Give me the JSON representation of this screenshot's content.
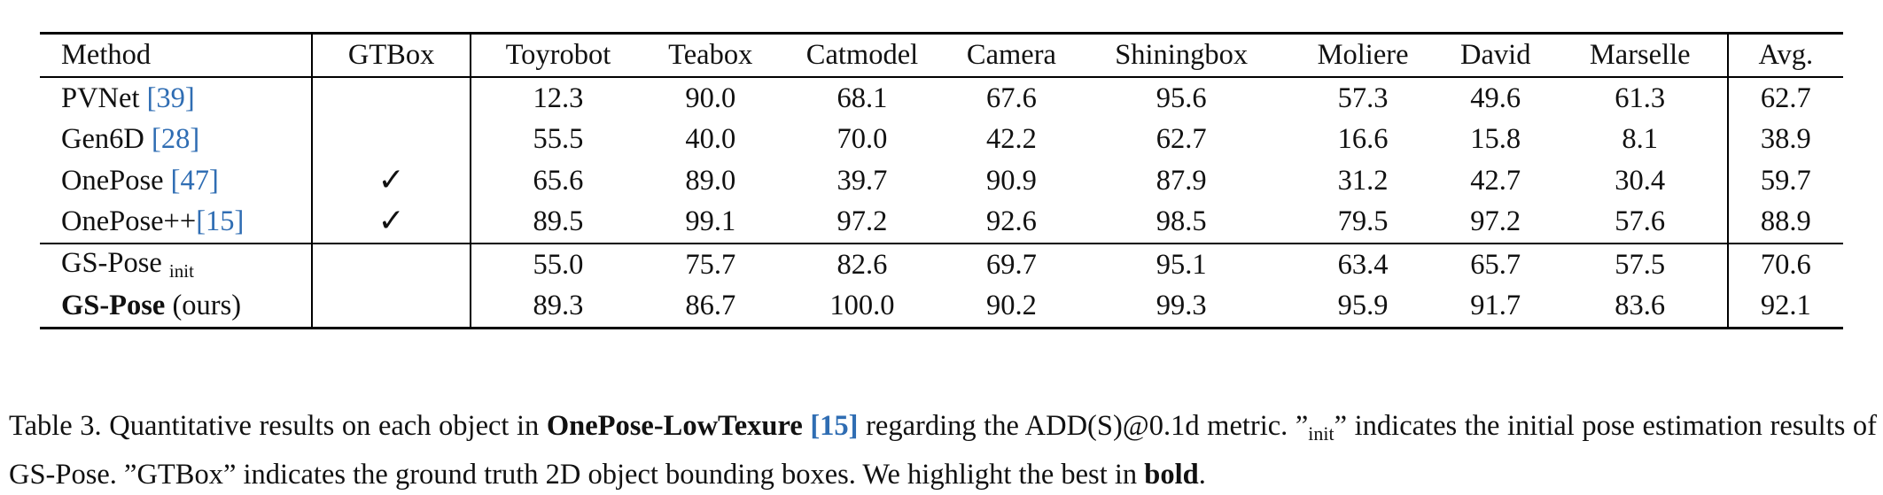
{
  "table": {
    "headers": [
      "Method",
      "GTBox",
      "Toyrobot",
      "Teabox",
      "Catmodel",
      "Camera",
      "Shiningbox",
      "Moliere",
      "David",
      "Marselle",
      "Avg."
    ],
    "rows": [
      {
        "method": {
          "name": "PVNet ",
          "ref": "[39]",
          "after": ""
        },
        "gtbox": "",
        "values": [
          "12.3",
          "90.0",
          "68.1",
          "67.6",
          "95.6",
          "57.3",
          "49.6",
          "61.3",
          "62.7"
        ]
      },
      {
        "method": {
          "name": "Gen6D ",
          "ref": "[28]",
          "after": ""
        },
        "gtbox": "",
        "values": [
          "55.5",
          "40.0",
          "70.0",
          "42.2",
          "62.7",
          "16.6",
          "15.8",
          "8.1",
          "38.9"
        ]
      },
      {
        "method": {
          "name": "OnePose ",
          "ref": "[47]",
          "after": ""
        },
        "gtbox": "✓",
        "values": [
          "65.6",
          "89.0",
          "39.7",
          "90.9",
          "87.9",
          "31.2",
          "42.7",
          "30.4",
          "59.7"
        ]
      },
      {
        "method": {
          "name": "OnePose++",
          "ref": "[15]",
          "after": ""
        },
        "gtbox": "✓",
        "values": [
          "89.5",
          "99.1",
          "97.2",
          "92.6",
          "98.5",
          "79.5",
          "97.2",
          "57.6",
          "88.9"
        ]
      },
      {
        "method": {
          "name": "GS-Pose ",
          "sub": "init"
        },
        "gtbox": "",
        "values": [
          "55.0",
          "75.7",
          "82.6",
          "69.7",
          "95.1",
          "63.4",
          "65.7",
          "57.5",
          "70.6"
        ]
      },
      {
        "method": {
          "name": "GS-Pose",
          "suffix": " (ours)"
        },
        "gtbox": "",
        "values": [
          "89.3",
          "86.7",
          "100.0",
          "90.2",
          "99.3",
          "95.9",
          "91.7",
          "83.6",
          "92.1"
        ]
      }
    ]
  },
  "caption": {
    "p1": "Table 3.  Quantitative results on each object in ",
    "dataset": "OnePose-LowTexure",
    "ref": "[15]",
    "p2": " regarding the ADD(S)@0.1d metric.  ”",
    "init": "init",
    "p3": "” indicates the initial pose estimation results of GS-Pose. ”GTBox” indicates the ground truth 2D object bounding boxes. We highlight the best in ",
    "bold": "bold",
    "p4": "."
  }
}
